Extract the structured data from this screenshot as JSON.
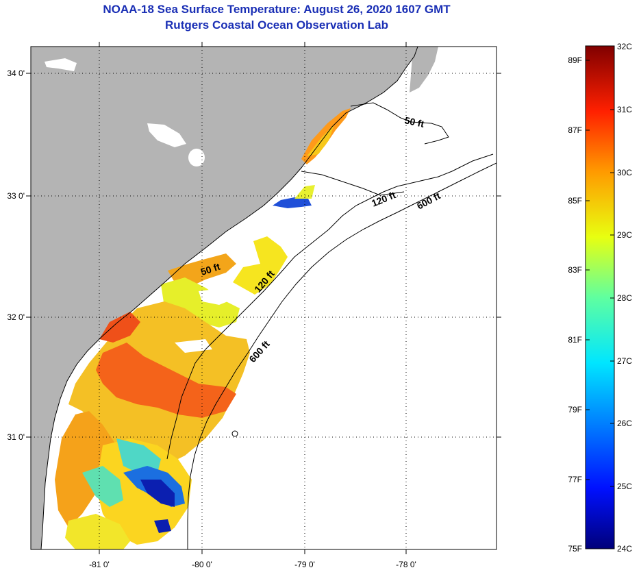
{
  "title": "NOAA-18 Sea Surface Temperature:  August 26, 2020 1607 GMT",
  "subtitle": "Rutgers Coastal Ocean Observation Lab",
  "lat_labels": [
    "34 0'",
    "33 0'",
    "32 0'",
    "31 0'"
  ],
  "lon_labels": [
    "-81 0'",
    "-80 0'",
    "-79 0'",
    "-78 0'"
  ],
  "contours": [
    "50 ft",
    "120 ft",
    "600 ft",
    "50 ft",
    "120 ft",
    "600 ft"
  ],
  "colorbar": {
    "fahrenheit": [
      "89F",
      "87F",
      "85F",
      "83F",
      "81F",
      "79F",
      "77F",
      "75F"
    ],
    "celsius": [
      "32C",
      "31C",
      "30C",
      "29C",
      "28C",
      "27C",
      "26C",
      "25C",
      "24C"
    ]
  },
  "colors": {
    "title": "#1a2fb5",
    "land": "#b4b4b4",
    "ocean_nodata": "#ffffff"
  }
}
